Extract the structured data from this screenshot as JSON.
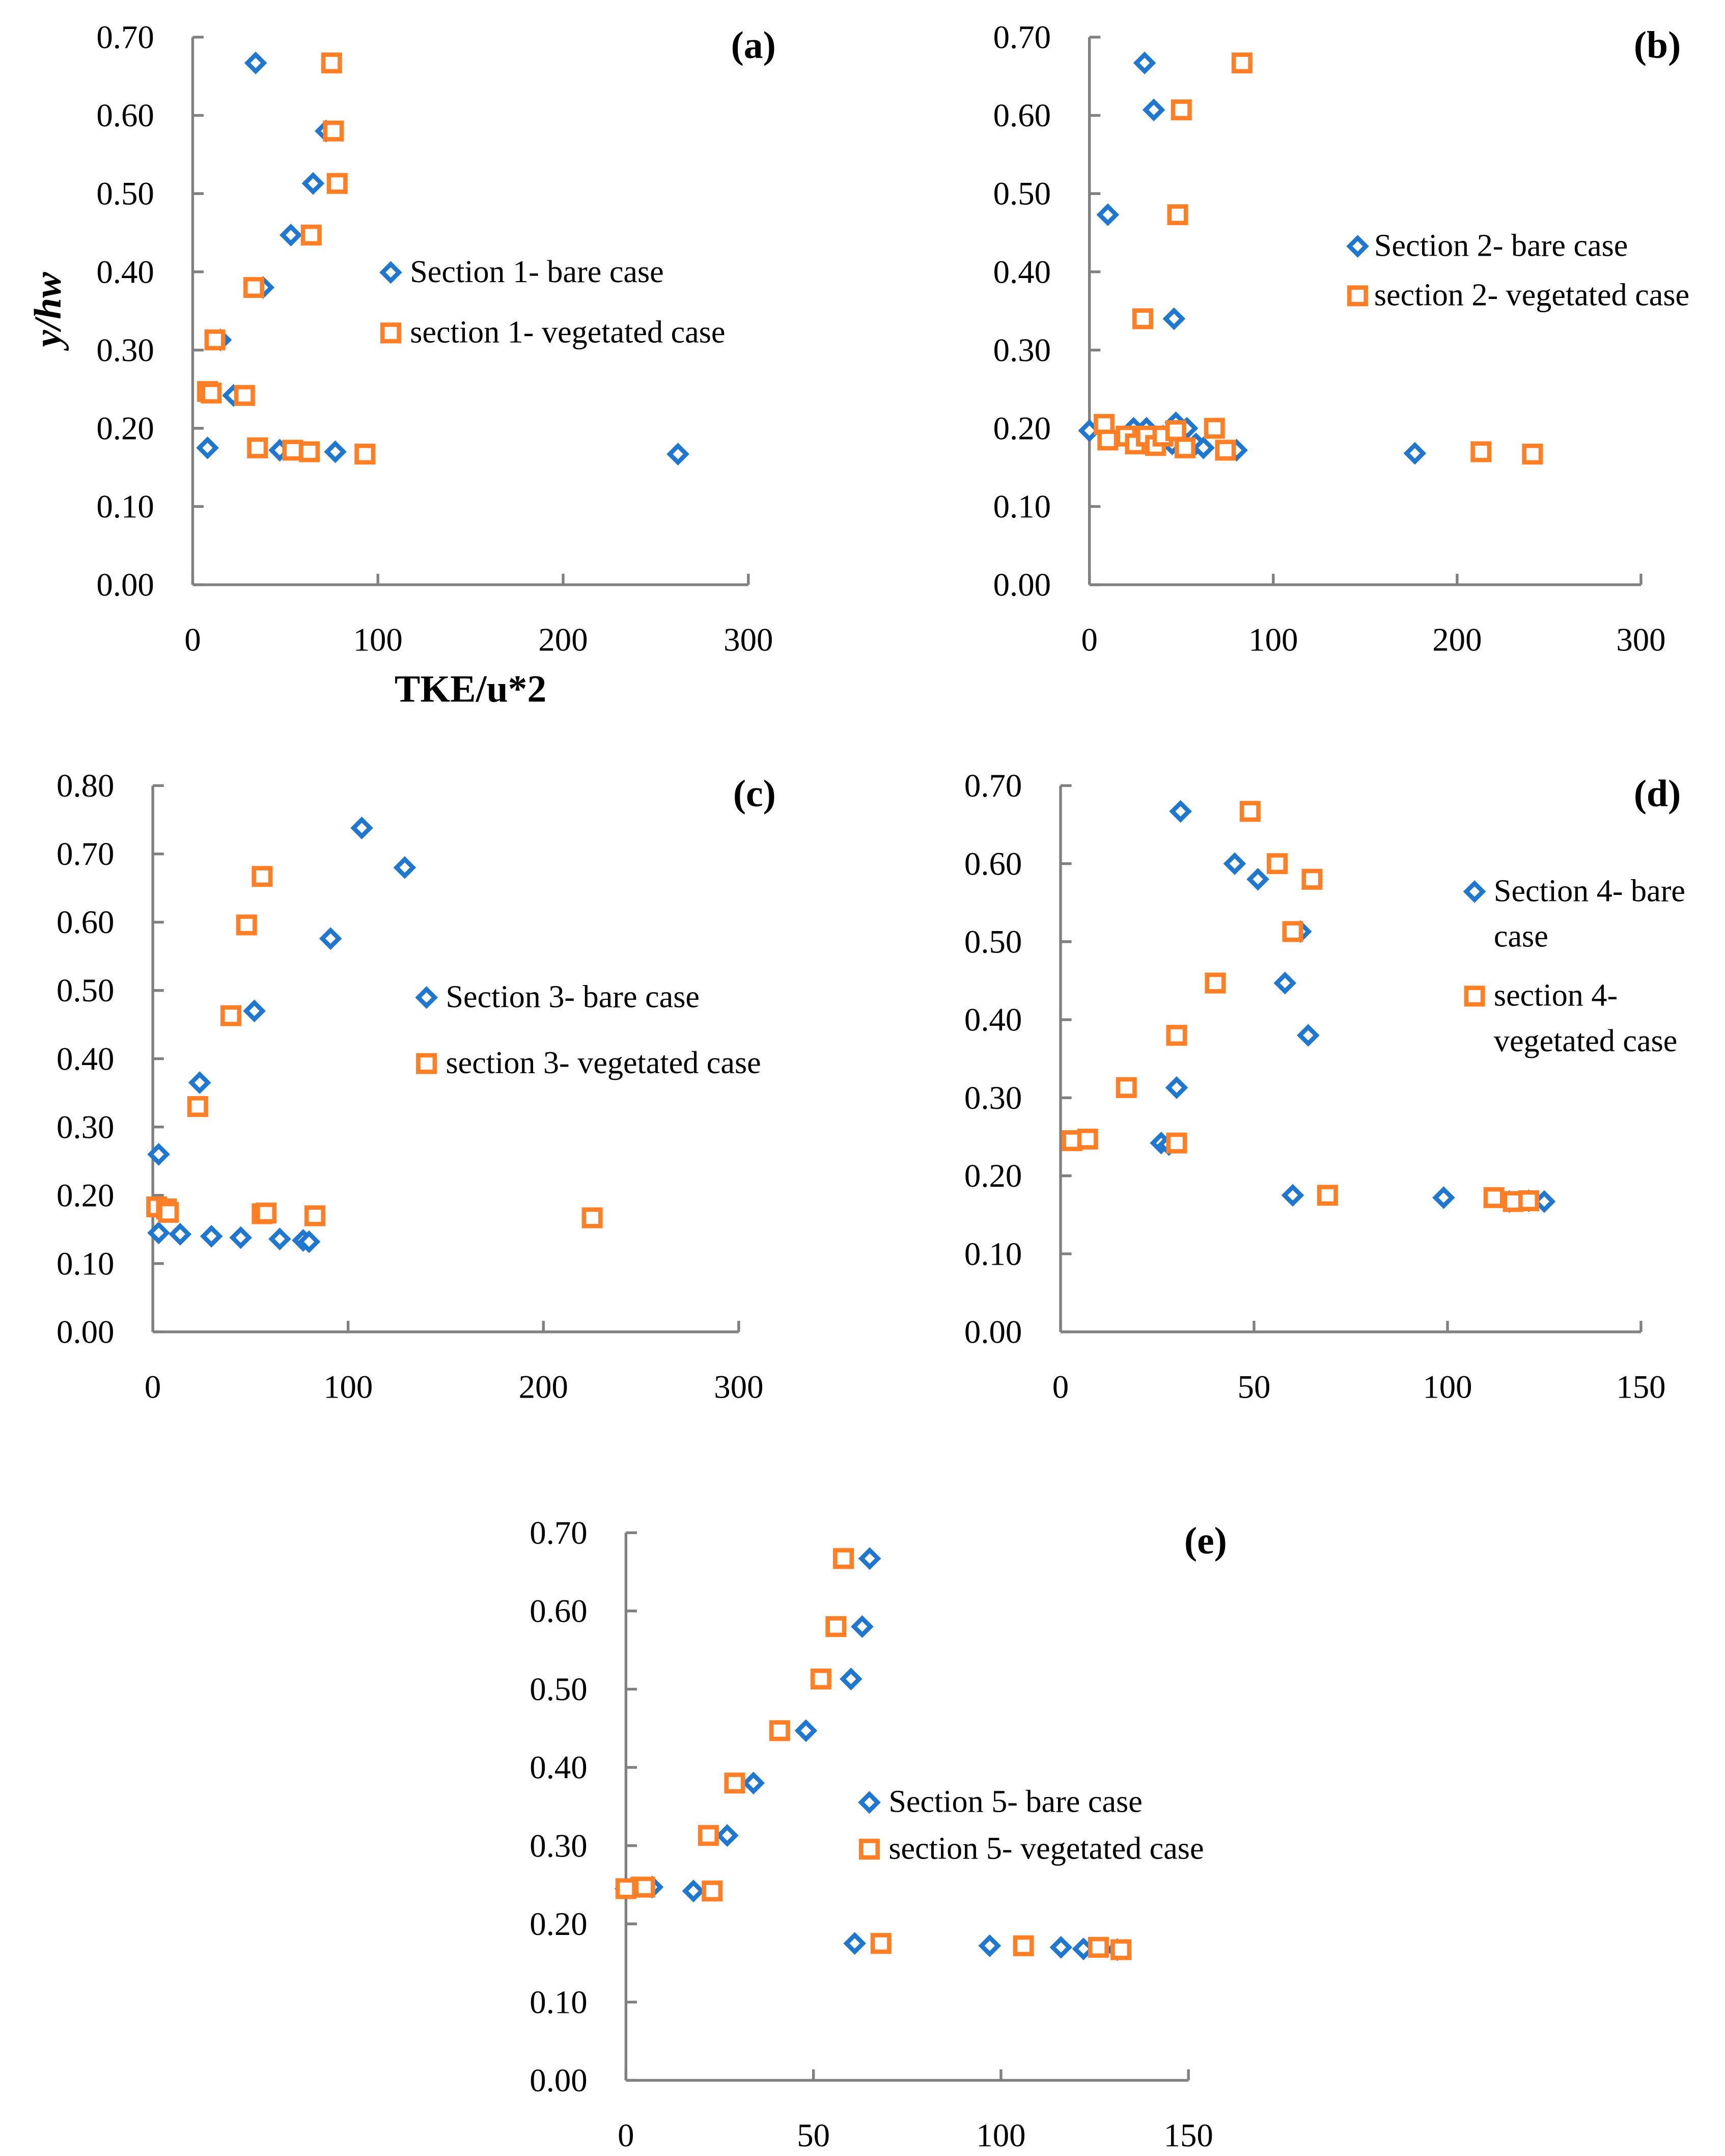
{
  "colors": {
    "bare": "#1f77d0",
    "vegetated": "#ff7f27",
    "axis": "#808080"
  },
  "axis_labels": {
    "y": "y/hw",
    "x": "TKE/u*2"
  },
  "chart_data": [
    {
      "type": "scatter",
      "panel": "(a)",
      "xlim": [
        0,
        300
      ],
      "ylim": [
        0,
        0.7
      ],
      "xticks": [
        "0",
        "100",
        "200",
        "300"
      ],
      "yticks": [
        "0.00",
        "0.10",
        "0.20",
        "0.30",
        "0.40",
        "0.50",
        "0.60",
        "0.70"
      ],
      "xlabel": "TKE/u*2",
      "ylabel": "y/hw",
      "legend": "center-right",
      "series": [
        {
          "name": "Section 1- bare case",
          "legend_lines": [
            "Section 1- bare case"
          ],
          "marker": "diamond",
          "points": [
            [
              34,
              0.667
            ],
            [
              72,
              0.58
            ],
            [
              65,
              0.513
            ],
            [
              53,
              0.447
            ],
            [
              38,
              0.38
            ],
            [
              15,
              0.313
            ],
            [
              22,
              0.242
            ],
            [
              8,
              0.175
            ],
            [
              47,
              0.172
            ],
            [
              77,
              0.17
            ],
            [
              262,
              0.167
            ]
          ]
        },
        {
          "name": "section 1- vegetated case",
          "legend_lines": [
            "section 1- vegetated case"
          ],
          "marker": "square",
          "points": [
            [
              75,
              0.667
            ],
            [
              76,
              0.58
            ],
            [
              78,
              0.513
            ],
            [
              64,
              0.447
            ],
            [
              33,
              0.38
            ],
            [
              12,
              0.313
            ],
            [
              8,
              0.247
            ],
            [
              10,
              0.245
            ],
            [
              28,
              0.242
            ],
            [
              35,
              0.175
            ],
            [
              54,
              0.172
            ],
            [
              63,
              0.17
            ],
            [
              93,
              0.167
            ]
          ]
        }
      ]
    },
    {
      "type": "scatter",
      "panel": "(b)",
      "xlim": [
        0,
        300
      ],
      "ylim": [
        0,
        0.7
      ],
      "xticks": [
        "0",
        "100",
        "200",
        "300"
      ],
      "yticks": [
        "0.00",
        "0.10",
        "0.20",
        "0.30",
        "0.40",
        "0.50",
        "0.60",
        "0.70"
      ],
      "legend": "upper-right",
      "series": [
        {
          "name": "Section 2- bare case",
          "legend_lines": [
            "Section 2- bare case"
          ],
          "marker": "diamond",
          "points": [
            [
              30,
              0.667
            ],
            [
              35,
              0.607
            ],
            [
              10,
              0.473
            ],
            [
              46,
              0.34
            ],
            [
              0,
              0.197
            ],
            [
              24,
              0.2
            ],
            [
              31,
              0.2
            ],
            [
              47,
              0.207
            ],
            [
              53,
              0.2
            ],
            [
              40,
              0.19
            ],
            [
              45,
              0.18
            ],
            [
              58,
              0.18
            ],
            [
              62,
              0.175
            ],
            [
              80,
              0.172
            ],
            [
              177,
              0.168
            ]
          ]
        },
        {
          "name": "section 2- vegetated case",
          "legend_lines": [
            "section 2- vegetated case"
          ],
          "marker": "square",
          "points": [
            [
              83,
              0.667
            ],
            [
              50,
              0.607
            ],
            [
              48,
              0.473
            ],
            [
              29,
              0.34
            ],
            [
              8,
              0.205
            ],
            [
              10,
              0.185
            ],
            [
              20,
              0.19
            ],
            [
              25,
              0.18
            ],
            [
              31,
              0.19
            ],
            [
              36,
              0.178
            ],
            [
              40,
              0.19
            ],
            [
              47,
              0.197
            ],
            [
              52,
              0.175
            ],
            [
              68,
              0.2
            ],
            [
              74,
              0.172
            ],
            [
              213,
              0.17
            ],
            [
              241,
              0.167
            ]
          ]
        }
      ]
    },
    {
      "type": "scatter",
      "panel": "(c)",
      "xlim": [
        0,
        300
      ],
      "ylim": [
        0,
        0.8
      ],
      "xticks": [
        "0",
        "100",
        "200",
        "300"
      ],
      "yticks": [
        "0.00",
        "0.10",
        "0.20",
        "0.30",
        "0.40",
        "0.50",
        "0.60",
        "0.70",
        "0.80"
      ],
      "legend": "center-right",
      "series": [
        {
          "name": "Section 3- bare case",
          "legend_lines": [
            "Section 3- bare case"
          ],
          "marker": "diamond",
          "points": [
            [
              107,
              0.738
            ],
            [
              129,
              0.68
            ],
            [
              91,
              0.576
            ],
            [
              52,
              0.47
            ],
            [
              24,
              0.365
            ],
            [
              3,
              0.26
            ],
            [
              3,
              0.145
            ],
            [
              14,
              0.143
            ],
            [
              30,
              0.14
            ],
            [
              45,
              0.138
            ],
            [
              65,
              0.136
            ],
            [
              77,
              0.134
            ],
            [
              80,
              0.132
            ]
          ]
        },
        {
          "name": "section 3- vegetated case",
          "legend_lines": [
            "section 3- vegetated case"
          ],
          "marker": "square",
          "points": [
            [
              56,
              0.667
            ],
            [
              48,
              0.596
            ],
            [
              40,
              0.463
            ],
            [
              23,
              0.33
            ],
            [
              2,
              0.183
            ],
            [
              7,
              0.18
            ],
            [
              8,
              0.175
            ],
            [
              56,
              0.173
            ],
            [
              58,
              0.174
            ],
            [
              83,
              0.17
            ],
            [
              225,
              0.167
            ]
          ]
        }
      ]
    },
    {
      "type": "scatter",
      "panel": "(d)",
      "xlim": [
        0,
        150
      ],
      "ylim": [
        0,
        0.7
      ],
      "xticks": [
        "0",
        "50",
        "100",
        "150"
      ],
      "yticks": [
        "0.00",
        "0.10",
        "0.20",
        "0.30",
        "0.40",
        "0.50",
        "0.60",
        "0.70"
      ],
      "legend": "right",
      "series": [
        {
          "name": "Section 4- bare case",
          "legend_lines": [
            "Section 4- bare",
            "case"
          ],
          "marker": "diamond",
          "points": [
            [
              31,
              0.667
            ],
            [
              45,
              0.6
            ],
            [
              51,
              0.58
            ],
            [
              62,
              0.513
            ],
            [
              58,
              0.447
            ],
            [
              64,
              0.38
            ],
            [
              30,
              0.313
            ],
            [
              26,
              0.242
            ],
            [
              28,
              0.24
            ],
            [
              60,
              0.175
            ],
            [
              99,
              0.172
            ],
            [
              116,
              0.167
            ],
            [
              121,
              0.168
            ],
            [
              125,
              0.167
            ]
          ]
        },
        {
          "name": "section 4- vegetated case",
          "legend_lines": [
            "section 4-",
            "vegetated case"
          ],
          "marker": "square",
          "points": [
            [
              49,
              0.667
            ],
            [
              56,
              0.6
            ],
            [
              65,
              0.58
            ],
            [
              60,
              0.513
            ],
            [
              40,
              0.447
            ],
            [
              30,
              0.38
            ],
            [
              17,
              0.313
            ],
            [
              3,
              0.245
            ],
            [
              7,
              0.247
            ],
            [
              30,
              0.242
            ],
            [
              69,
              0.175
            ],
            [
              112,
              0.172
            ],
            [
              117,
              0.167
            ],
            [
              121,
              0.168
            ]
          ]
        }
      ]
    },
    {
      "type": "scatter",
      "panel": "(e)",
      "xlim": [
        0,
        150
      ],
      "ylim": [
        0,
        0.7
      ],
      "xticks": [
        "0",
        "50",
        "100",
        "150"
      ],
      "yticks": [
        "0.00",
        "0.10",
        "0.20",
        "0.30",
        "0.40",
        "0.50",
        "0.60",
        "0.70"
      ],
      "legend": "center-right",
      "series": [
        {
          "name": "Section 5- bare case",
          "legend_lines": [
            "Section 5- bare case"
          ],
          "marker": "diamond",
          "points": [
            [
              65,
              0.667
            ],
            [
              63,
              0.58
            ],
            [
              60,
              0.513
            ],
            [
              48,
              0.447
            ],
            [
              34,
              0.38
            ],
            [
              27,
              0.313
            ],
            [
              18,
              0.242
            ],
            [
              7,
              0.247
            ],
            [
              0,
              0.245
            ],
            [
              61,
              0.175
            ],
            [
              97,
              0.172
            ],
            [
              116,
              0.17
            ],
            [
              122,
              0.168
            ],
            [
              131,
              0.167
            ]
          ]
        },
        {
          "name": "section 5- vegetated case",
          "legend_lines": [
            "section 5- vegetated case"
          ],
          "marker": "square",
          "points": [
            [
              58,
              0.667
            ],
            [
              56,
              0.58
            ],
            [
              52,
              0.513
            ],
            [
              41,
              0.447
            ],
            [
              29,
              0.38
            ],
            [
              22,
              0.313
            ],
            [
              23,
              0.242
            ],
            [
              4,
              0.247
            ],
            [
              5,
              0.247
            ],
            [
              0,
              0.245
            ],
            [
              68,
              0.175
            ],
            [
              106,
              0.172
            ],
            [
              126,
              0.17
            ],
            [
              132,
              0.167
            ]
          ]
        }
      ]
    }
  ]
}
